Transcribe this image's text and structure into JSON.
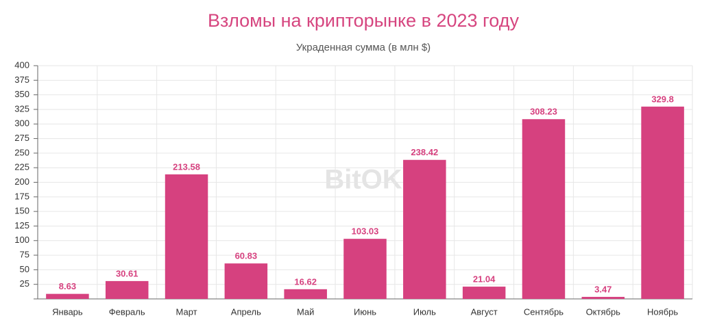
{
  "chart_data": {
    "type": "bar",
    "title": "Взломы на крипторынке в 2023 году",
    "subtitle": "Украденная сумма (в млн $)",
    "watermark": "BitOK",
    "categories": [
      "Январь",
      "Февраль",
      "Март",
      "Апрель",
      "Май",
      "Июнь",
      "Июль",
      "Август",
      "Сентябрь",
      "Октябрь",
      "Ноябрь"
    ],
    "values": [
      8.63,
      30.61,
      213.58,
      60.83,
      16.62,
      103.03,
      238.42,
      21.04,
      308.23,
      3.47,
      329.8
    ],
    "color": "#d6417f",
    "ylim": [
      0,
      400
    ],
    "yticks": [
      25,
      50,
      75,
      100,
      125,
      150,
      175,
      200,
      225,
      250,
      275,
      300,
      325,
      350,
      375,
      400
    ],
    "grid": true
  }
}
